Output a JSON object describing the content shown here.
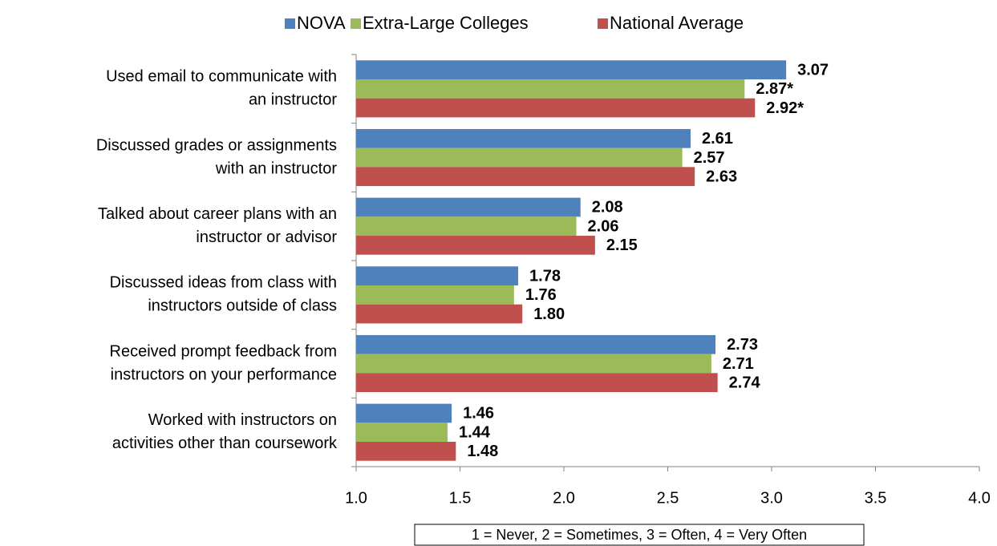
{
  "chart_data": {
    "type": "bar",
    "orientation": "horizontal",
    "categories": [
      [
        "Used email to communicate with",
        "an instructor"
      ],
      [
        "Discussed grades or assignments",
        "with an instructor"
      ],
      [
        "Talked about career plans with an",
        "instructor or advisor"
      ],
      [
        "Discussed ideas from class with",
        "instructors outside of class"
      ],
      [
        "Received prompt feedback from",
        "instructors on your performance"
      ],
      [
        "Worked with instructors on",
        "activities other than coursework"
      ]
    ],
    "series": [
      {
        "name": "NOVA",
        "color": "#4f81bd",
        "values": [
          3.07,
          2.61,
          2.08,
          1.78,
          2.73,
          1.46
        ],
        "value_labels": [
          "3.07",
          "2.61",
          "2.08",
          "1.78",
          "2.73",
          "1.46"
        ]
      },
      {
        "name": "Extra-Large Colleges",
        "color": "#9bbb59",
        "values": [
          2.87,
          2.57,
          2.06,
          1.76,
          2.71,
          1.44
        ],
        "value_labels": [
          "2.87*",
          "2.57",
          "2.06",
          "1.76",
          "2.71",
          "1.44"
        ]
      },
      {
        "name": "National Average",
        "color": "#c0504d",
        "values": [
          2.92,
          2.63,
          2.15,
          1.8,
          2.74,
          1.48
        ],
        "value_labels": [
          "2.92*",
          "2.63",
          "2.15",
          "1.80",
          "2.74",
          "1.48"
        ]
      }
    ],
    "xlim": [
      1,
      4
    ],
    "xticks": [
      {
        "value": 1,
        "label": "1.0"
      },
      1.5,
      {
        "value": 2,
        "label": "2.0"
      },
      2.5,
      {
        "value": 3,
        "label": "3.0"
      },
      3.5,
      {
        "value": 4,
        "label": "4.0"
      }
    ],
    "legend": "top",
    "annotation": "1 = Never, 2 = Sometimes, 3 = Often, 4 = Very Often"
  }
}
